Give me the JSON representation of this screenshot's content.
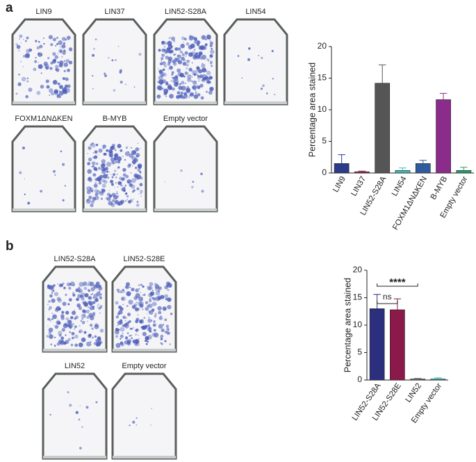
{
  "panels": [
    {
      "letter": "a",
      "plates": [
        "LIN9",
        "LIN37",
        "LIN52-S28A",
        "LIN54",
        "FOXM1ΔNΔKEN",
        "B-MYB",
        "Empty vector"
      ]
    },
    {
      "letter": "b",
      "plates": [
        "LIN52-S28A",
        "LIN52-S28E",
        "LIN52",
        "Empty vector"
      ]
    }
  ],
  "chart_data": [
    {
      "type": "bar",
      "ylabel": "Percentage area stained",
      "categories": [
        "LIN9",
        "LIN37",
        "LIN52-S28A",
        "LIN54",
        "FOXM1ΔNΔKEN",
        "B-MYB",
        "Empty vector"
      ],
      "values": [
        1.5,
        0.2,
        14.2,
        0.4,
        1.5,
        11.6,
        0.4
      ],
      "errors": [
        1.4,
        0.1,
        2.9,
        0.4,
        0.5,
        1.0,
        0.5
      ],
      "colors": [
        "#2b3a8a",
        "#a02050",
        "#555555",
        "#3ab8b0",
        "#2f5c9e",
        "#8b2c8b",
        "#2a9a6a"
      ],
      "ylim": [
        0,
        20
      ],
      "yticks": [
        0,
        5,
        10,
        15,
        20
      ]
    },
    {
      "type": "bar",
      "ylabel": "Percentage area stained",
      "categories": [
        "LIN52-S28A",
        "LIN52-S28E",
        "LIN52",
        "Empty vector"
      ],
      "values": [
        13.0,
        12.8,
        0.2,
        0.2
      ],
      "errors": [
        2.6,
        2.0,
        0.1,
        0.2
      ],
      "colors": [
        "#2b2f7e",
        "#8b1a4a",
        "#777777",
        "#3ab8b0"
      ],
      "ylim": [
        0,
        20
      ],
      "yticks": [
        0,
        5,
        10,
        15,
        20
      ],
      "annotations": [
        {
          "text": "****",
          "from": "LIN52-S28A",
          "to": "LIN52"
        },
        {
          "text": "ns",
          "from": "LIN52-S28A",
          "to": "LIN52-S28E"
        }
      ]
    }
  ]
}
